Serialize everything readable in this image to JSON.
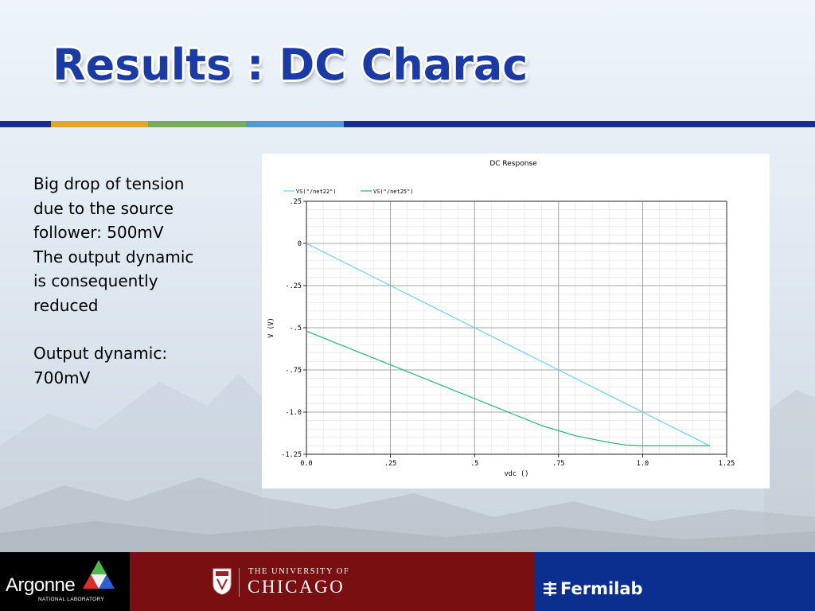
{
  "slide": {
    "title": "Results : DC Charac",
    "stripe_colors": [
      "#142f8f",
      "#e2a526",
      "#77ad59",
      "#4f9ad4",
      "#142f8f"
    ]
  },
  "body": {
    "paragraphs": [
      [
        "Big drop of tension",
        "due to the source",
        "follower: 500mV",
        "The output dynamic",
        "is consequently",
        "reduced"
      ],
      [
        "Output dynamic:",
        "700mV"
      ]
    ]
  },
  "chart_data": {
    "type": "line",
    "title": "DC Response",
    "xlabel": "vdc ()",
    "ylabel": "V (V)",
    "xlim": [
      0,
      1.25
    ],
    "ylim": [
      -1.25,
      0.25
    ],
    "xticks": [
      0,
      0.25,
      0.5,
      0.75,
      1.0,
      1.25
    ],
    "xtick_labels": [
      "0.0",
      ".25",
      ".5",
      ".75",
      "1.0",
      "1.25"
    ],
    "yticks": [
      0.25,
      0,
      -0.25,
      -0.5,
      -0.75,
      -1.0,
      -1.25
    ],
    "ytick_labels": [
      ".25",
      "0",
      "-.25",
      "-.5",
      "-.75",
      "-1.0",
      "-1.25"
    ],
    "grid": true,
    "legend_position": "top-left",
    "series": [
      {
        "name": "VS(\"/net22\")",
        "color": "#5fd6f2",
        "x": [
          0,
          0.25,
          0.5,
          0.75,
          1.0,
          1.2
        ],
        "y": [
          0,
          -0.25,
          -0.5,
          -0.75,
          -1.0,
          -1.2
        ]
      },
      {
        "name": "VS(\"/net25\")",
        "color": "#1cb878",
        "x": [
          0,
          0.1,
          0.25,
          0.4,
          0.5,
          0.6,
          0.7,
          0.8,
          0.9,
          0.95,
          1.0,
          1.05,
          1.1,
          1.2
        ],
        "y": [
          -0.52,
          -0.6,
          -0.72,
          -0.84,
          -0.92,
          -1.0,
          -1.08,
          -1.14,
          -1.18,
          -1.195,
          -1.2,
          -1.2,
          -1.2,
          -1.2
        ]
      }
    ]
  },
  "footer": {
    "argonne": {
      "name": "Argonne",
      "subtitle": "NATIONAL LABORATORY"
    },
    "chicago": {
      "line1": "THE UNIVERSITY OF",
      "line2": "CHICAGO"
    },
    "fermilab": {
      "name": "Fermilab"
    }
  }
}
